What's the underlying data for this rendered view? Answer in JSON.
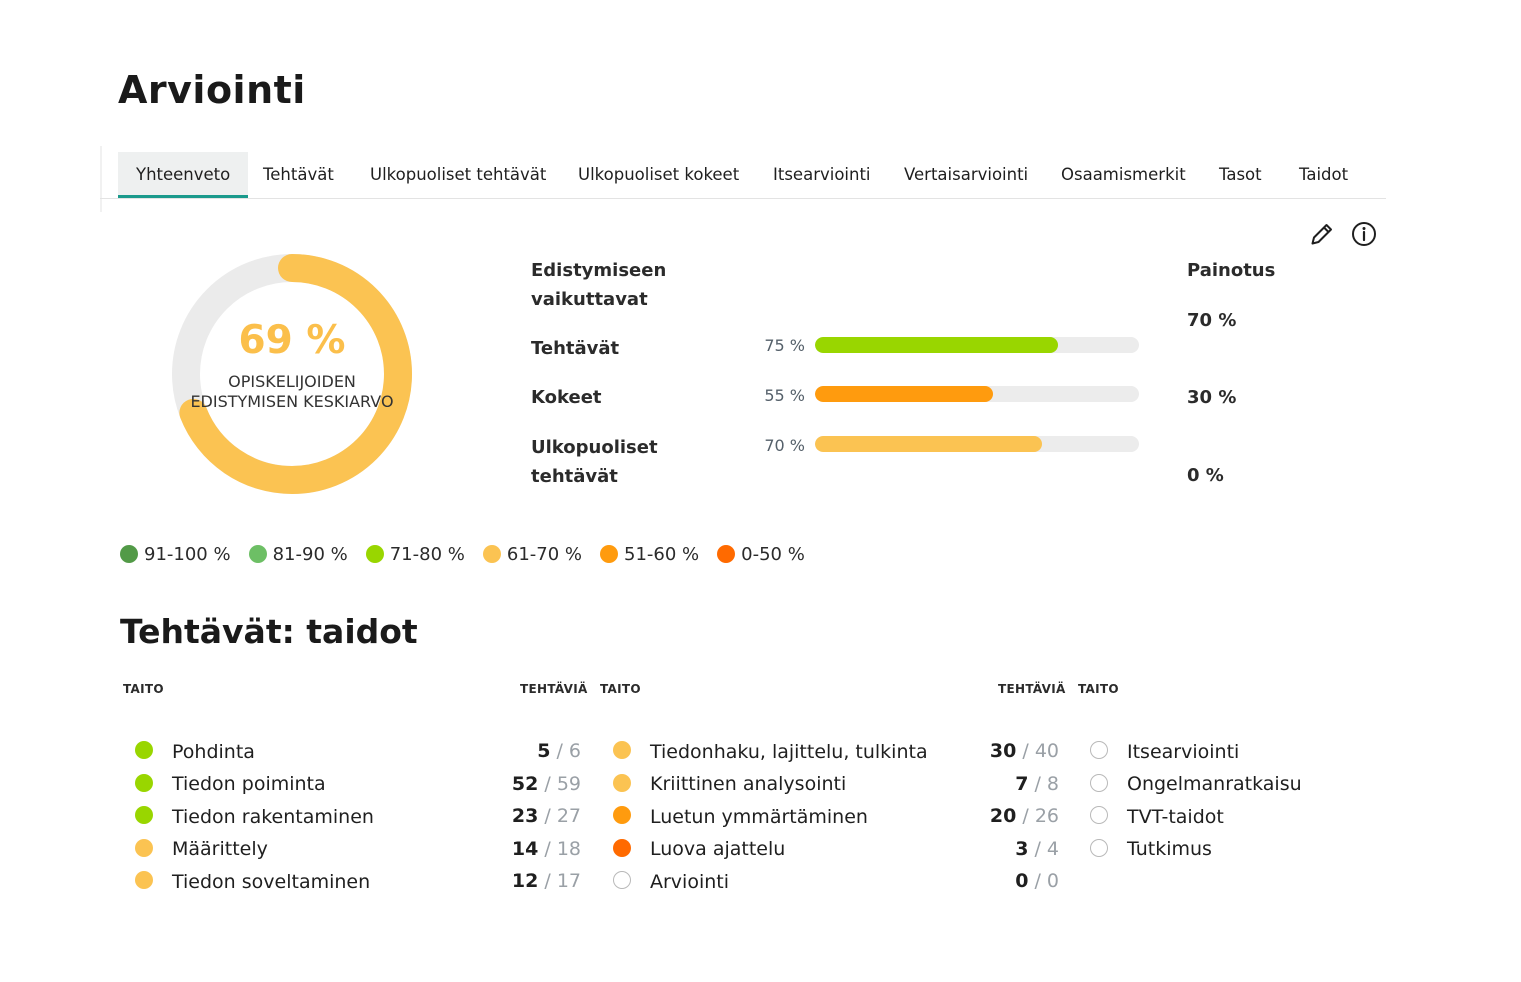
{
  "page": {
    "title": "Arviointi"
  },
  "tabs": [
    {
      "label": "Yhteenveto",
      "active": true
    },
    {
      "label": "Tehtävät"
    },
    {
      "label": "Ulkopuoliset tehtävät"
    },
    {
      "label": "Ulkopuoliset kokeet"
    },
    {
      "label": "Itsearviointi"
    },
    {
      "label": "Vertaisarviointi"
    },
    {
      "label": "Osaamismerkit"
    },
    {
      "label": "Tasot"
    },
    {
      "label": "Taidot"
    }
  ],
  "toolbar": {
    "edit_icon": "pencil-icon",
    "info_icon": "info-icon"
  },
  "summary": {
    "average_value": 69,
    "average_text": "69 %",
    "average_label": "Opiskelijoiden edistymisen keskiarvo",
    "color": "#fbc352",
    "track_color": "#ebebeb"
  },
  "progress": {
    "header": "Edistymiseen vaikuttavat",
    "weight_header": "Painotus",
    "rows": [
      {
        "label": "Tehtävät",
        "value": 75,
        "value_text": "75 %",
        "weight_text": "70 %",
        "color": "#99d600"
      },
      {
        "label": "Kokeet",
        "value": 55,
        "value_text": "55 %",
        "weight_text": "30 %",
        "color": "#ff9b0e"
      },
      {
        "label": "Ulkopuoliset tehtävät",
        "value": 70,
        "value_text": "70 %",
        "weight_text": "0 %",
        "color": "#fbc352"
      }
    ]
  },
  "legend": [
    {
      "label": "91-100 %",
      "color": "#529a47"
    },
    {
      "label": "81-90 %",
      "color": "#6dbf65"
    },
    {
      "label": "71-80 %",
      "color": "#99d600"
    },
    {
      "label": "61-70 %",
      "color": "#fbc352"
    },
    {
      "label": "51-60 %",
      "color": "#ff9b0e"
    },
    {
      "label": "0-50 %",
      "color": "#ff6a00"
    }
  ],
  "skills": {
    "title": "Tehtävät: taidot",
    "col_skill": "TAITO",
    "col_tasks": "TEHTÄVIÄ",
    "columns": [
      [
        {
          "name": "Pohdinta",
          "done": "5",
          "total": "6",
          "color": "#99d600"
        },
        {
          "name": "Tiedon poiminta",
          "done": "52",
          "total": "59",
          "color": "#99d600"
        },
        {
          "name": "Tiedon rakentaminen",
          "done": "23",
          "total": "27",
          "color": "#99d600"
        },
        {
          "name": "Määrittely",
          "done": "14",
          "total": "18",
          "color": "#fbc352"
        },
        {
          "name": "Tiedon soveltaminen",
          "done": "12",
          "total": "17",
          "color": "#fbc352"
        }
      ],
      [
        {
          "name": "Tiedonhaku, lajittelu, tulkinta",
          "done": "30",
          "total": "40",
          "color": "#fbc352"
        },
        {
          "name": "Kriittinen analysointi",
          "done": "7",
          "total": "8",
          "color": "#fbc352"
        },
        {
          "name": "Luetun ymmärtäminen",
          "done": "20",
          "total": "26",
          "color": "#ff9b0e"
        },
        {
          "name": "Luova ajattelu",
          "done": "3",
          "total": "4",
          "color": "#ff6a00"
        },
        {
          "name": "Arviointi",
          "done": "0",
          "total": "0",
          "color": ""
        }
      ],
      [
        {
          "name": "Itsearviointi",
          "color": ""
        },
        {
          "name": "Ongelmanratkaisu",
          "color": ""
        },
        {
          "name": "TVT-taidot",
          "color": ""
        },
        {
          "name": "Tutkimus",
          "color": ""
        }
      ]
    ]
  }
}
